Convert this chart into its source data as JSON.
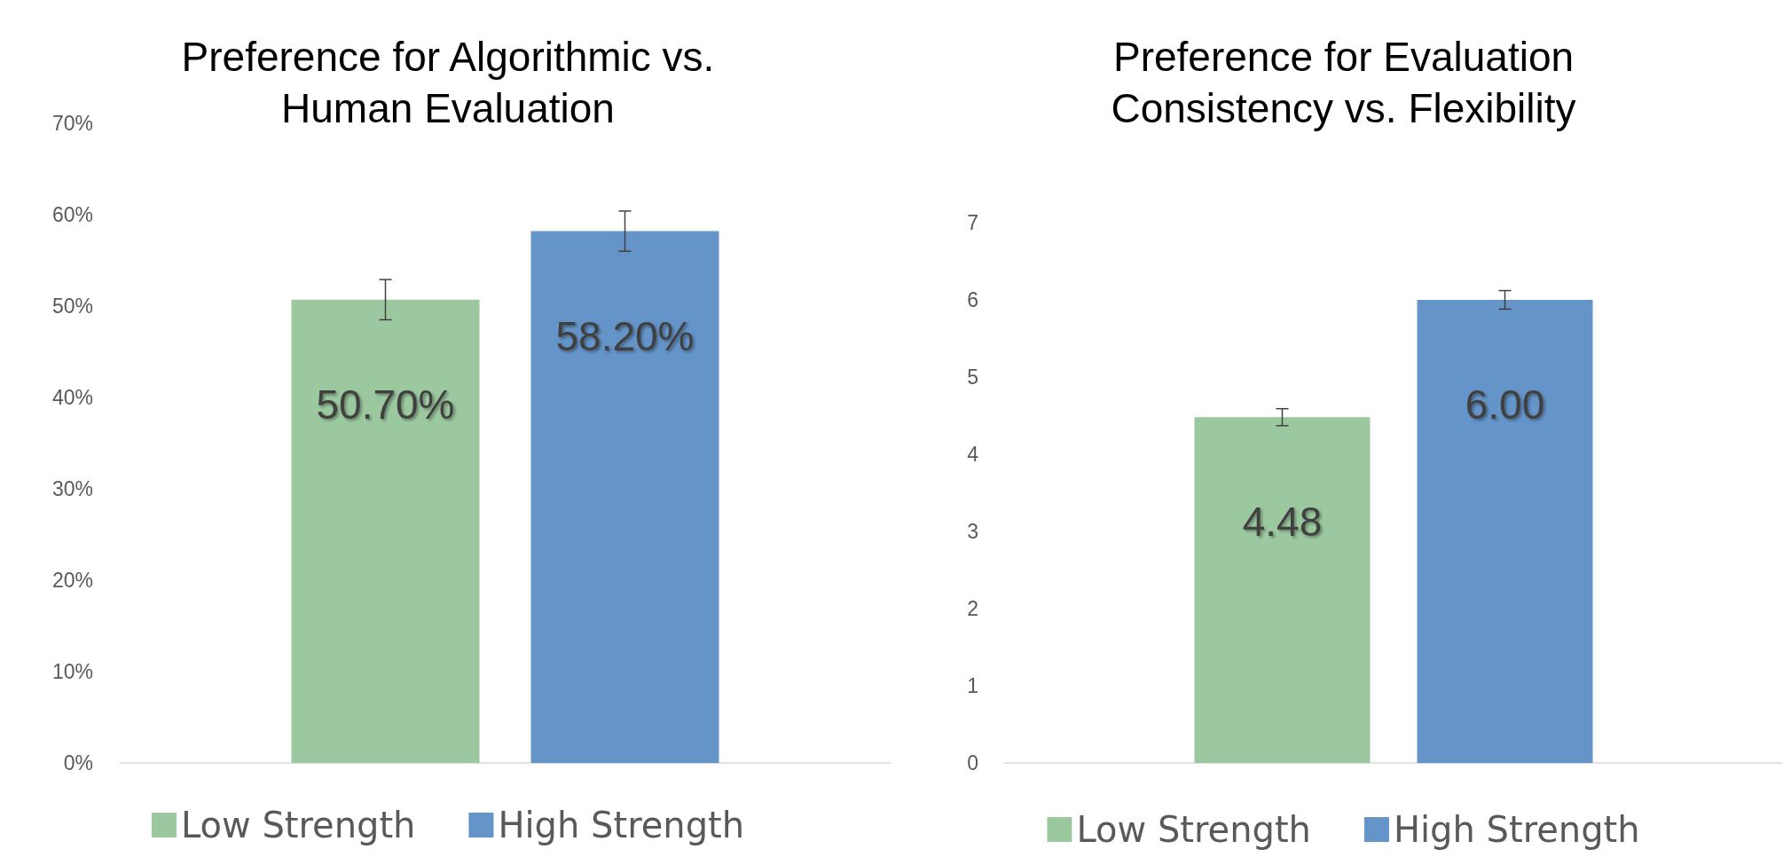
{
  "chart_data": [
    {
      "type": "bar",
      "title": "Preference for Algorithmic vs.\nHuman Evaluation",
      "categories": [
        null
      ],
      "series": [
        {
          "name": "Low Strength",
          "color": "#9bc89e",
          "values": [
            50.7
          ],
          "errors": [
            2.2
          ],
          "value_labels": [
            "50.70%"
          ]
        },
        {
          "name": "High Strength",
          "color": "#6494c8",
          "values": [
            58.2
          ],
          "errors": [
            2.2
          ],
          "value_labels": [
            "58.20%"
          ]
        }
      ],
      "ylim": [
        0,
        70
      ],
      "yticks": [
        {
          "value": 0,
          "label": "0%"
        },
        {
          "value": 10,
          "label": "10%"
        },
        {
          "value": 20,
          "label": "20%"
        },
        {
          "value": 30,
          "label": "30%"
        },
        {
          "value": 40,
          "label": "40%"
        },
        {
          "value": 50,
          "label": "50%"
        },
        {
          "value": 60,
          "label": "60%"
        },
        {
          "value": 70,
          "label": "70%"
        }
      ],
      "grid": false,
      "legend": "bottom"
    },
    {
      "type": "bar",
      "title": "Preference for Evaluation\nConsistency vs. Flexibility",
      "categories": [
        null
      ],
      "series": [
        {
          "name": "Low Strength",
          "color": "#9bc89e",
          "values": [
            4.48
          ],
          "errors": [
            0.11
          ],
          "value_labels": [
            "4.48"
          ]
        },
        {
          "name": "High Strength",
          "color": "#6494c8",
          "values": [
            6.0
          ],
          "errors": [
            0.12
          ],
          "value_labels": [
            "6.00"
          ]
        }
      ],
      "ylim": [
        0,
        7
      ],
      "yticks": [
        0,
        1,
        2,
        3,
        4,
        5,
        6,
        7
      ],
      "grid": false,
      "legend": "bottom"
    }
  ]
}
